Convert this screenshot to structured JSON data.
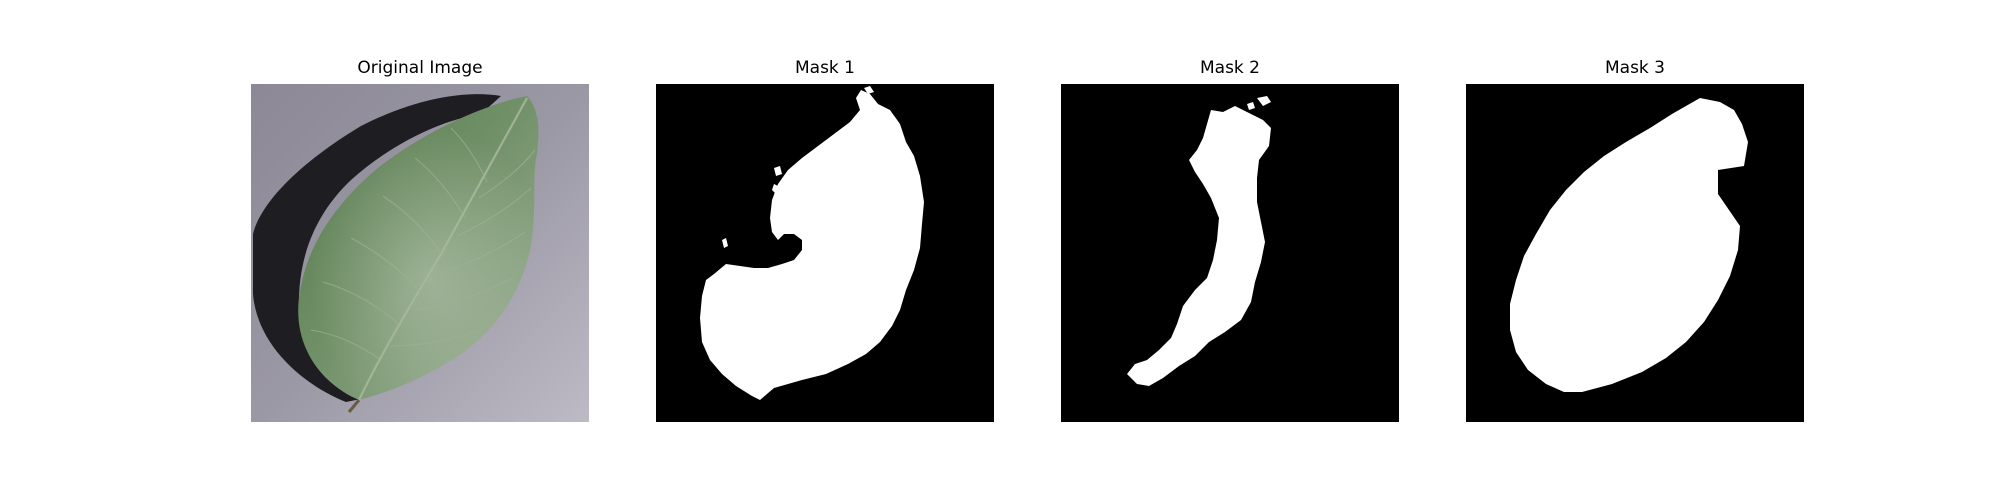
{
  "panels": [
    {
      "title": "Original Image",
      "image": "apple-leaf-photo"
    },
    {
      "title": "Mask 1",
      "image": "binary-segmentation-mask"
    },
    {
      "title": "Mask 2",
      "image": "binary-segmentation-mask"
    },
    {
      "title": "Mask 3",
      "image": "binary-segmentation-mask"
    }
  ],
  "colors": {
    "background": "#ffffff",
    "mask_background": "#000000",
    "mask_foreground": "#ffffff",
    "leaf_green": "#6b8c60",
    "surface_gray": "#9a97a4",
    "shadow": "#1c1b20"
  }
}
